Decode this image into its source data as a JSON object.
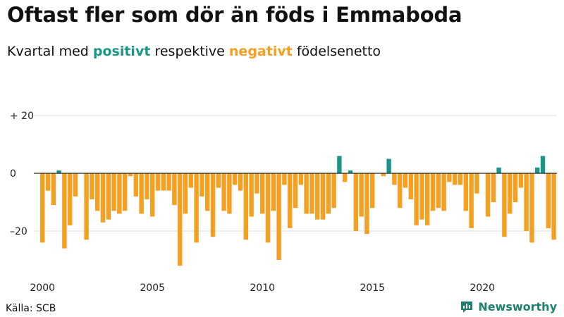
{
  "title": "Oftast fler som dör än föds i Emmaboda",
  "subtitle": {
    "prefix": "Kvartal med ",
    "positive": "positivt",
    "middle": " respektive ",
    "negative": "negativt",
    "suffix": " födelsenetto"
  },
  "source": "Källa: SCB",
  "brand": "Newsworthy",
  "colors": {
    "positive": "#1a9688",
    "negative": "#f5a020",
    "axis": "#222222",
    "grid": "#dddddd",
    "brand": "#1e8070"
  },
  "chart_data": {
    "type": "bar",
    "title": "Oftast fler som dör än föds i Emmaboda",
    "subtitle": "Kvartal med positivt respektive negativt födelsenetto",
    "xlabel": "",
    "ylabel": "",
    "start_year": 2000,
    "quarters_per_year": 4,
    "x_ticks": [
      2000,
      2005,
      2010,
      2015,
      2020
    ],
    "y_ticks": [
      {
        "value": 20,
        "label": "+ 20"
      },
      {
        "value": 0,
        "label": "0"
      },
      {
        "value": -20,
        "label": "–20"
      }
    ],
    "ylim": [
      -33,
      21
    ],
    "grid": true,
    "values": [
      -24,
      -6,
      -11,
      1,
      -26,
      -18,
      -8,
      0,
      -23,
      -9,
      -13,
      -17,
      -16,
      -13,
      -14,
      -13,
      -1,
      -8,
      -14,
      -9,
      -15,
      -6,
      -6,
      -6,
      -11,
      -32,
      -14,
      -5,
      -24,
      -8,
      -13,
      -22,
      -5,
      -13,
      -14,
      -4,
      -6,
      -23,
      -15,
      -7,
      -14,
      -24,
      -13,
      -30,
      -4,
      -19,
      -12,
      -4,
      -14,
      -14,
      -16,
      -16,
      -14,
      -12,
      6,
      -3,
      1,
      -20,
      -15,
      -21,
      -12,
      0,
      -1,
      5,
      -4,
      -12,
      -5,
      -9,
      -18,
      -16,
      -18,
      -13,
      -12,
      -13,
      -3,
      -4,
      -4,
      -13,
      -19,
      -7,
      0,
      -15,
      -10,
      2,
      -22,
      -14,
      -10,
      -5,
      -20,
      -24,
      2,
      6,
      -19,
      -23
    ]
  }
}
